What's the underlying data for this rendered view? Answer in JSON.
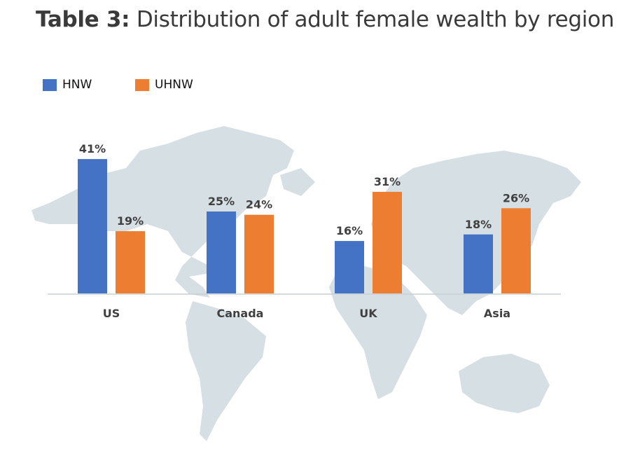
{
  "chart_data": {
    "type": "bar",
    "title_bold": "Table 3:",
    "title_rest": "Distribution of adult female wealth by region",
    "categories": [
      "US",
      "Canada",
      "UK",
      "Asia"
    ],
    "series": [
      {
        "name": "HNW",
        "values": [
          41,
          25,
          16,
          18
        ],
        "labels": [
          "41%",
          "25%",
          "16%",
          "18%"
        ],
        "color": "#4472C4"
      },
      {
        "name": "UHNW",
        "values": [
          19,
          24,
          31,
          26
        ],
        "labels": [
          "19%",
          "24%",
          "31%",
          "26%"
        ],
        "color": "#ED7D31"
      }
    ],
    "unit": "%",
    "ylim": [
      0,
      45
    ],
    "grid": false,
    "legend_position": "top-left",
    "background": "world-map"
  }
}
